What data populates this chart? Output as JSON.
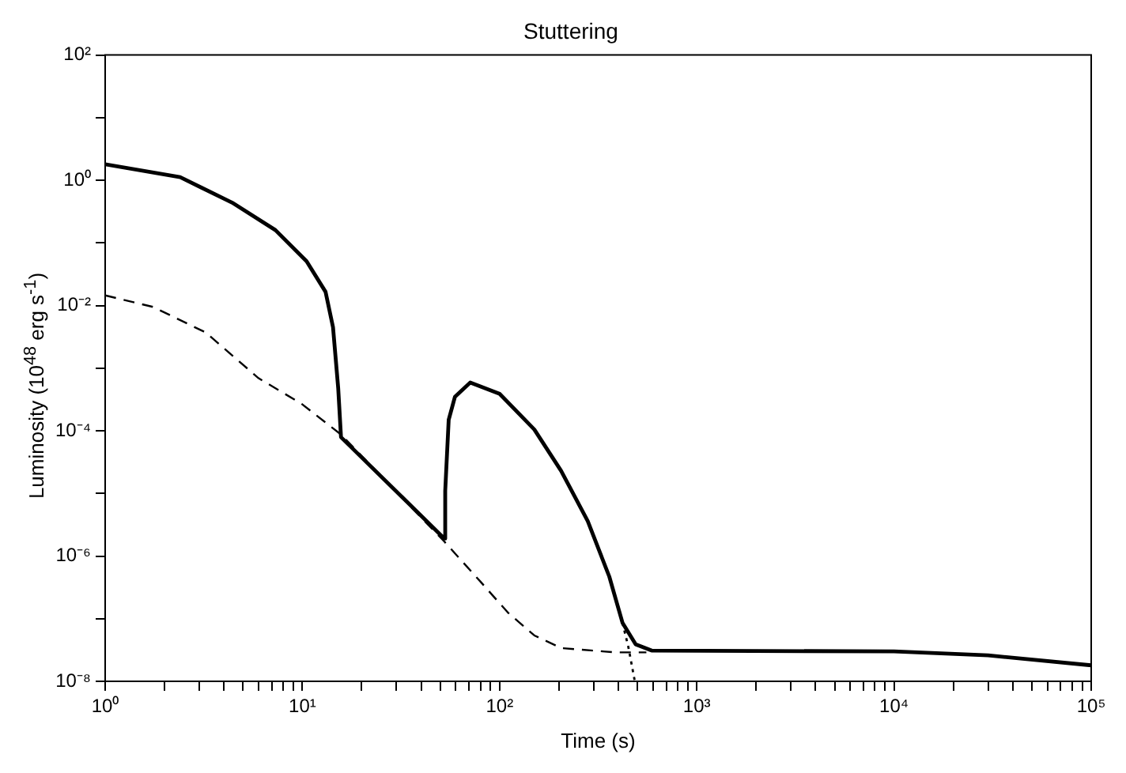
{
  "chart_data": {
    "type": "line",
    "title": "Stuttering",
    "xlabel": "Time (s)",
    "ylabel": "Luminosity (10$^{48}$ erg s$^{-1}$)",
    "log": "xy",
    "grid": false,
    "legend": false,
    "marker": "none",
    "xlim": [
      1,
      100000
    ],
    "ylim": [
      1e-08,
      100
    ],
    "xticks": [
      {
        "value": 1,
        "label": "10⁰"
      },
      {
        "value": 2,
        "label": null
      },
      {
        "value": 3,
        "label": null
      },
      {
        "value": 4,
        "label": null
      },
      {
        "value": 5,
        "label": null
      },
      {
        "value": 6,
        "label": null
      },
      {
        "value": 7,
        "label": null
      },
      {
        "value": 8,
        "label": null
      },
      {
        "value": 9,
        "label": null
      },
      {
        "value": 10,
        "label": "10¹"
      },
      {
        "value": 20,
        "label": null
      },
      {
        "value": 30,
        "label": null
      },
      {
        "value": 40,
        "label": null
      },
      {
        "value": 50,
        "label": null
      },
      {
        "value": 60,
        "label": null
      },
      {
        "value": 70,
        "label": null
      },
      {
        "value": 80,
        "label": null
      },
      {
        "value": 90,
        "label": null
      },
      {
        "value": 100,
        "label": "10²"
      },
      {
        "value": 200,
        "label": null
      },
      {
        "value": 300,
        "label": null
      },
      {
        "value": 400,
        "label": null
      },
      {
        "value": 500,
        "label": null
      },
      {
        "value": 600,
        "label": null
      },
      {
        "value": 700,
        "label": null
      },
      {
        "value": 800,
        "label": null
      },
      {
        "value": 900,
        "label": null
      },
      {
        "value": 1000,
        "label": "10³"
      },
      {
        "value": 2000,
        "label": null
      },
      {
        "value": 3000,
        "label": null
      },
      {
        "value": 4000,
        "label": null
      },
      {
        "value": 5000,
        "label": null
      },
      {
        "value": 6000,
        "label": null
      },
      {
        "value": 7000,
        "label": null
      },
      {
        "value": 8000,
        "label": null
      },
      {
        "value": 9000,
        "label": null
      },
      {
        "value": 10000,
        "label": "10⁴"
      },
      {
        "value": 20000,
        "label": null
      },
      {
        "value": 30000,
        "label": null
      },
      {
        "value": 40000,
        "label": null
      },
      {
        "value": 50000,
        "label": null
      },
      {
        "value": 60000,
        "label": null
      },
      {
        "value": 70000,
        "label": null
      },
      {
        "value": 80000,
        "label": null
      },
      {
        "value": 90000,
        "label": null
      },
      {
        "value": 100000,
        "label": "10⁵"
      }
    ],
    "yticks": [
      {
        "value": 1e-08,
        "label": "10⁻⁸"
      },
      {
        "value": 1e-07,
        "label": null
      },
      {
        "value": 1e-06,
        "label": "10⁻⁶"
      },
      {
        "value": 1e-05,
        "label": null
      },
      {
        "value": 0.0001,
        "label": "10⁻⁴"
      },
      {
        "value": 0.001,
        "label": null
      },
      {
        "value": 0.01,
        "label": "10⁻²"
      },
      {
        "value": 0.1,
        "label": null
      },
      {
        "value": 1,
        "label": "10⁰"
      },
      {
        "value": 10,
        "label": null
      },
      {
        "value": 100,
        "label": "10²"
      }
    ],
    "series": [
      {
        "color": "#000000",
        "line_style": "solid",
        "x": [
          1,
          2.4,
          4.4,
          7.3,
          10.5,
          13.1,
          14.3,
          15.2,
          15.7,
          52.5,
          53,
          55.2,
          59.4,
          71,
          100,
          150,
          205,
          280,
          360,
          420,
          490,
          590,
          10000,
          30000,
          100000
        ],
        "values": [
          1.8,
          1.12,
          0.44,
          0.16,
          0.051,
          0.0166,
          0.0045,
          0.00047,
          7.9e-05,
          1.9e-06,
          1.1e-05,
          0.00015,
          0.00035,
          0.00059,
          0.00039,
          0.000105,
          2.3e-05,
          3.6e-06,
          4.7e-07,
          8.6e-08,
          3.9e-08,
          3.1e-08,
          3e-08,
          2.6e-08,
          1.8e-08
        ]
      },
      {
        "color": "#000000",
        "line_style": "dashed",
        "x": [
          1,
          1.75,
          3.24,
          6,
          9.9,
          15.7,
          52.5,
          80,
          110,
          150,
          205,
          385,
          555
        ],
        "values": [
          0.0145,
          0.0095,
          0.0037,
          0.00069,
          0.00027,
          8.7e-05,
          1.7e-06,
          3.9e-07,
          1.26e-07,
          5.4e-08,
          3.4e-08,
          2.9e-08,
          2.9e-08
        ]
      },
      {
        "color": "#000000",
        "line_style": "dotted",
        "x": [
          420,
          450,
          485
        ],
        "values": [
          8.6e-08,
          3.5e-08,
          1e-08
        ]
      }
    ]
  }
}
